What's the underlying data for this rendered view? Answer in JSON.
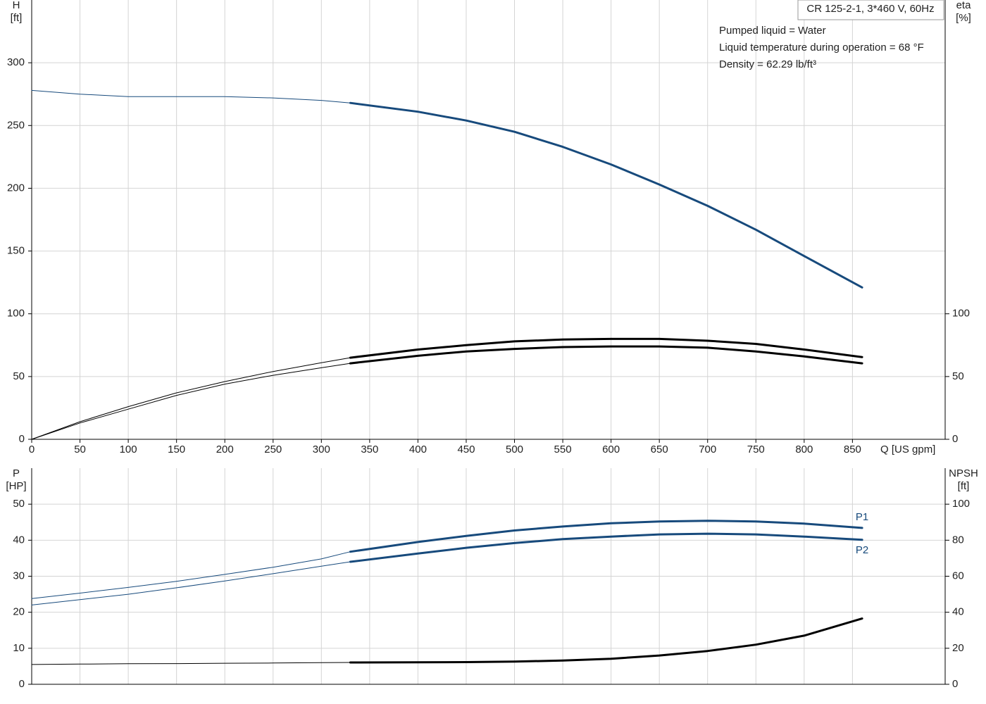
{
  "legend_box": "CR 125-2-1, 3*460 V, 60Hz",
  "info": [
    "Pumped liquid = Water",
    "Liquid temperature during operation = 68 °F",
    "Density = 62.29 lb/ft³"
  ],
  "chart_data": [
    {
      "type": "line",
      "ylabel": [
        "H",
        "[ft]"
      ],
      "y2label": [
        "eta",
        "[%]"
      ],
      "xlabel": "Q [US gpm]",
      "xlim": [
        0,
        946
      ],
      "xticks": [
        0,
        50,
        100,
        150,
        200,
        250,
        300,
        350,
        400,
        450,
        500,
        550,
        600,
        650,
        700,
        750,
        800,
        850
      ],
      "ylim": [
        0,
        350
      ],
      "yticks": [
        0,
        50,
        100,
        150,
        200,
        250,
        300
      ],
      "y2lim": [
        0,
        350
      ],
      "y2ticks": [
        0,
        50,
        100
      ],
      "grid": true,
      "operating_range": [
        330,
        860
      ],
      "x": [
        0,
        50,
        100,
        150,
        200,
        250,
        300,
        330,
        400,
        450,
        500,
        550,
        600,
        650,
        700,
        750,
        800,
        860
      ],
      "series": [
        {
          "color": "#174a7c",
          "values": [
            278,
            275,
            273,
            273,
            273,
            272,
            270,
            268,
            261,
            254,
            245,
            233,
            219,
            203,
            186,
            167,
            146,
            121
          ]
        },
        {
          "color": "#000000",
          "axis": "y2",
          "values": [
            0,
            14,
            26,
            37,
            46,
            54,
            61,
            65,
            71.5,
            75,
            78,
            79.5,
            80,
            80,
            78.5,
            76,
            71.5,
            65.5
          ]
        },
        {
          "color": "#000000",
          "axis": "y2",
          "values": [
            0,
            13,
            24,
            35,
            44,
            51,
            57,
            60.5,
            66.5,
            70,
            72,
            73.5,
            74,
            74,
            73,
            70,
            66,
            60.5
          ]
        }
      ]
    },
    {
      "type": "line",
      "ylabel": [
        "P",
        "[HP]"
      ],
      "y2label": [
        "NPSH",
        "[ft]"
      ],
      "xlim": [
        0,
        946
      ],
      "ylim": [
        0,
        60
      ],
      "yticks": [
        0,
        10,
        20,
        30,
        40,
        50
      ],
      "y2lim": [
        0,
        120
      ],
      "y2ticks": [
        0,
        20,
        40,
        60,
        80,
        100
      ],
      "grid": true,
      "operating_range": [
        330,
        860
      ],
      "x": [
        0,
        50,
        100,
        150,
        200,
        250,
        300,
        330,
        400,
        450,
        500,
        550,
        600,
        650,
        700,
        750,
        800,
        860
      ],
      "series": [
        {
          "name": "P1",
          "color": "#174a7c",
          "values": [
            23.8,
            25.3,
            26.9,
            28.6,
            30.5,
            32.5,
            34.8,
            36.8,
            39.5,
            41.2,
            42.7,
            43.8,
            44.7,
            45.2,
            45.4,
            45.2,
            44.6,
            43.4
          ]
        },
        {
          "name": "P2",
          "color": "#174a7c",
          "values": [
            22,
            23.5,
            25,
            26.8,
            28.7,
            30.7,
            32.8,
            34,
            36.3,
            37.9,
            39.2,
            40.3,
            41,
            41.6,
            41.8,
            41.6,
            41,
            40.1
          ]
        },
        {
          "color": "#000000",
          "axis": "y2",
          "values": [
            11,
            11.2,
            11.4,
            11.5,
            11.7,
            11.8,
            12,
            12.1,
            12.2,
            12.3,
            12.6,
            13.2,
            14.2,
            16,
            18.5,
            22,
            27,
            36.5
          ]
        }
      ]
    }
  ]
}
